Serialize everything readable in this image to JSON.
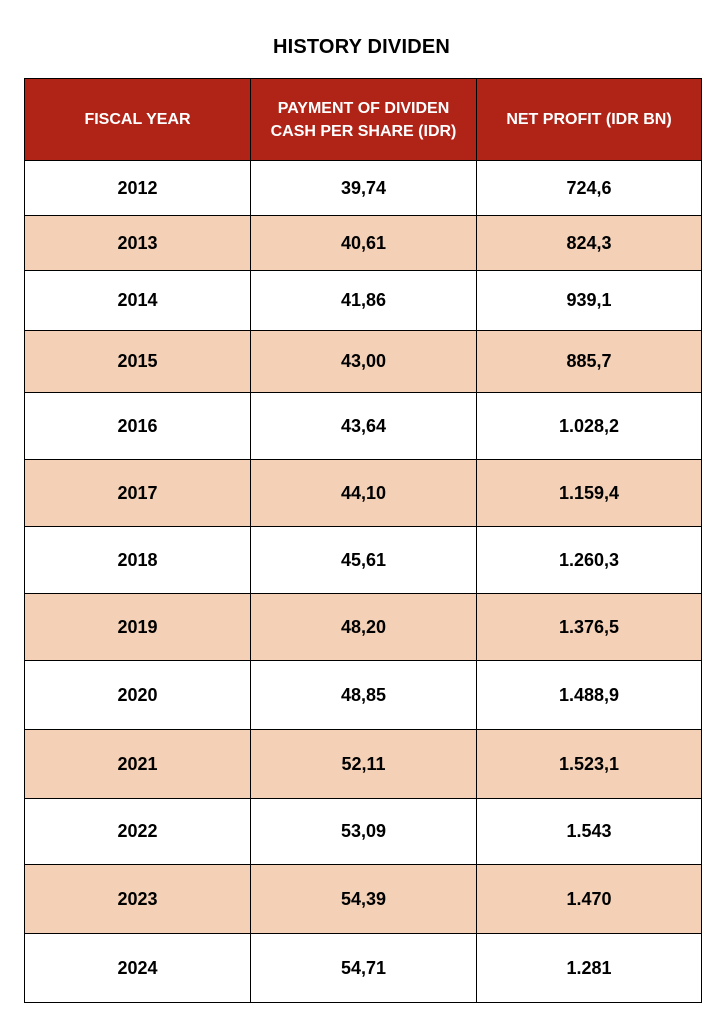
{
  "title": "HISTORY DIVIDEN",
  "colors": {
    "header_background": "#B02418",
    "header_text": "#FFFFFF",
    "shaded_row": "#F3D0B6",
    "plain_row": "#FFFFFF",
    "border": "#000000"
  },
  "table": {
    "headers": {
      "fiscal_year": "FISCAL YEAR",
      "dividend_line1": "PAYMENT OF DIVIDEN",
      "dividend_line2": "CASH PER SHARE (IDR)",
      "net_profit": "NET PROFIT (IDR BN)"
    },
    "rows": [
      {
        "year": "2012",
        "dividend": "39,74",
        "net_profit": "724,6"
      },
      {
        "year": "2013",
        "dividend": "40,61",
        "net_profit": "824,3"
      },
      {
        "year": "2014",
        "dividend": "41,86",
        "net_profit": "939,1"
      },
      {
        "year": "2015",
        "dividend": "43,00",
        "net_profit": "885,7"
      },
      {
        "year": "2016",
        "dividend": "43,64",
        "net_profit": "1.028,2"
      },
      {
        "year": "2017",
        "dividend": "44,10",
        "net_profit": "1.159,4"
      },
      {
        "year": "2018",
        "dividend": "45,61",
        "net_profit": "1.260,3"
      },
      {
        "year": "2019",
        "dividend": "48,20",
        "net_profit": "1.376,5"
      },
      {
        "year": "2020",
        "dividend": "48,85",
        "net_profit": "1.488,9"
      },
      {
        "year": "2021",
        "dividend": "52,11",
        "net_profit": "1.523,1"
      },
      {
        "year": "2022",
        "dividend": "53,09",
        "net_profit": "1.543"
      },
      {
        "year": "2023",
        "dividend": "54,39",
        "net_profit": "1.470"
      },
      {
        "year": "2024",
        "dividend": "54,71",
        "net_profit": "1.281"
      }
    ]
  }
}
